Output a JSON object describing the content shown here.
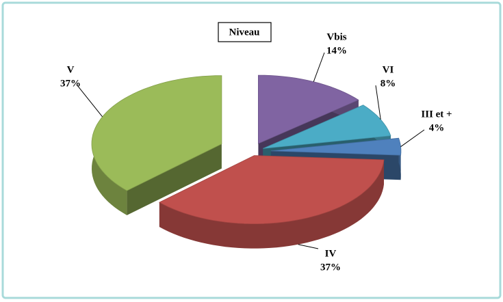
{
  "chart_data": {
    "type": "pie3d",
    "title": "Niveau",
    "categories": [
      "Vbis",
      "VI",
      "III  et +",
      "IV",
      "V"
    ],
    "values": [
      14,
      8,
      4,
      37,
      37
    ],
    "value_labels": [
      "14%",
      "8%",
      "4%",
      "37%",
      "37%"
    ],
    "colors": [
      "#8064a2",
      "#4bacc6",
      "#4f81bd",
      "#c0504d",
      "#9bbb59"
    ]
  }
}
